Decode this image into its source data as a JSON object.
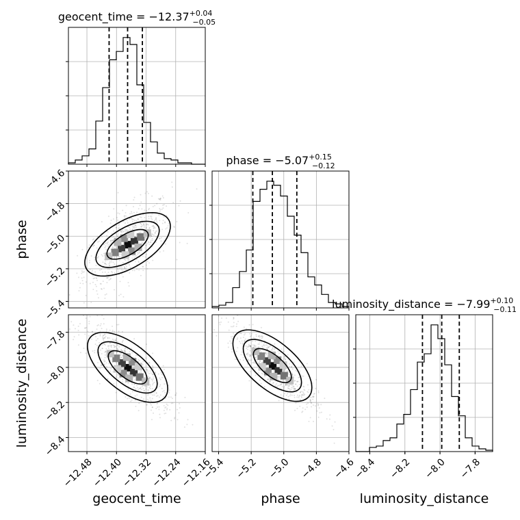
{
  "chart_data": {
    "type": "corner",
    "parameters": [
      "geocent_time",
      "phase",
      "luminosity_distance"
    ],
    "grid": true,
    "titles": [
      {
        "param": "geocent_time",
        "text": "geocent_time = −12.37",
        "upper": "+0.04",
        "lower": "−0.05"
      },
      {
        "param": "phase",
        "text": "phase = −5.07",
        "upper": "+0.15",
        "lower": "−0.12"
      },
      {
        "param": "luminosity_distance",
        "text": "luminosity_distance = −7.99",
        "upper": "+0.10",
        "lower": "−0.11"
      }
    ],
    "axis_labels": {
      "x": [
        "geocent_time",
        "phase",
        "luminosity_distance"
      ],
      "y": [
        "phase",
        "luminosity_distance"
      ]
    },
    "ranges": {
      "geocent_time": [
        -12.53,
        -12.16
      ],
      "phase": [
        -5.44,
        -4.6
      ],
      "luminosity_distance": [
        -8.48,
        -7.7
      ]
    },
    "ticks": {
      "geocent_time": {
        "values": [
          -12.48,
          -12.4,
          -12.32,
          -12.24,
          -12.16
        ],
        "labels": [
          "−12.48",
          "−12.40",
          "−12.32",
          "−12.24",
          "−12.16"
        ]
      },
      "phase": {
        "values": [
          -5.4,
          -5.2,
          -5.0,
          -4.8,
          -4.6
        ],
        "labels": [
          "−5.4",
          "−5.2",
          "−5.0",
          "−4.8",
          "−4.6"
        ]
      },
      "luminosity_distance": {
        "values": [
          -8.4,
          -8.2,
          -8.0,
          -7.8
        ],
        "labels": [
          "−8.4",
          "−8.2",
          "−8.0",
          "−7.8"
        ]
      }
    },
    "phase_yticks": {
      "values": [
        -5.4,
        -5.2,
        -5.0,
        -4.8,
        -4.6
      ],
      "labels": [
        "−5.4",
        "−5.2",
        "−5.0",
        "−4.8",
        "−4.6"
      ]
    },
    "lumdist_yticks": {
      "values": [
        -8.4,
        -8.2,
        -8.0,
        -7.8
      ],
      "labels": [
        "−8.4",
        "−8.2",
        "−8.0",
        "−7.8"
      ]
    },
    "histograms": [
      {
        "param": "geocent_time",
        "bin_edges": [
          -12.53,
          -12.5115,
          -12.493,
          -12.4745,
          -12.456,
          -12.4375,
          -12.419,
          -12.4005,
          -12.382,
          -12.3635,
          -12.345,
          -12.3265,
          -12.308,
          -12.2895,
          -12.271,
          -12.2525,
          -12.234,
          -12.2155,
          -12.197,
          -12.1785,
          -12.16
        ],
        "counts": [
          1,
          3,
          6,
          11,
          31,
          55,
          75,
          81,
          91,
          86,
          57,
          30,
          16,
          8,
          4,
          3,
          1,
          1,
          0,
          0
        ],
        "quantiles": [
          -12.42,
          -12.37,
          -12.33
        ]
      },
      {
        "param": "phase",
        "bin_edges": [
          -5.44,
          -5.398,
          -5.356,
          -5.314,
          -5.272,
          -5.23,
          -5.188,
          -5.146,
          -5.104,
          -5.062,
          -5.02,
          -4.978,
          -4.936,
          -4.894,
          -4.852,
          -4.81,
          -4.768,
          -4.726,
          -4.684,
          -4.642,
          -4.6
        ],
        "counts": [
          1,
          2,
          4,
          15,
          27,
          43,
          79,
          88,
          94,
          91,
          83,
          68,
          54,
          41,
          23,
          17,
          10,
          4,
          3,
          1
        ],
        "quantiles": [
          -5.19,
          -5.07,
          -4.92
        ]
      },
      {
        "param": "luminosity_distance",
        "bin_edges": [
          -8.48,
          -8.441,
          -8.402,
          -8.363,
          -8.324,
          -8.285,
          -8.246,
          -8.207,
          -8.168,
          -8.129,
          -8.09,
          -8.051,
          -8.012,
          -7.973,
          -7.934,
          -7.895,
          -7.856,
          -7.817,
          -7.778,
          -7.739,
          -7.7
        ],
        "counts": [
          0,
          0,
          3,
          4,
          8,
          10,
          20,
          27,
          45,
          65,
          71,
          92,
          82,
          63,
          40,
          26,
          10,
          4,
          2,
          1
        ],
        "quantiles": [
          -8.1,
          -7.99,
          -7.89
        ]
      }
    ],
    "pair_contours": [
      {
        "x": "geocent_time",
        "y": "phase",
        "center": [
          -12.37,
          -5.05
        ],
        "rho": 0.6
      },
      {
        "x": "geocent_time",
        "y": "luminosity_distance",
        "center": [
          -12.37,
          -8.0
        ],
        "rho": -0.8
      },
      {
        "x": "phase",
        "y": "luminosity_distance",
        "center": [
          -5.07,
          -7.99
        ],
        "rho": -0.85
      }
    ]
  }
}
